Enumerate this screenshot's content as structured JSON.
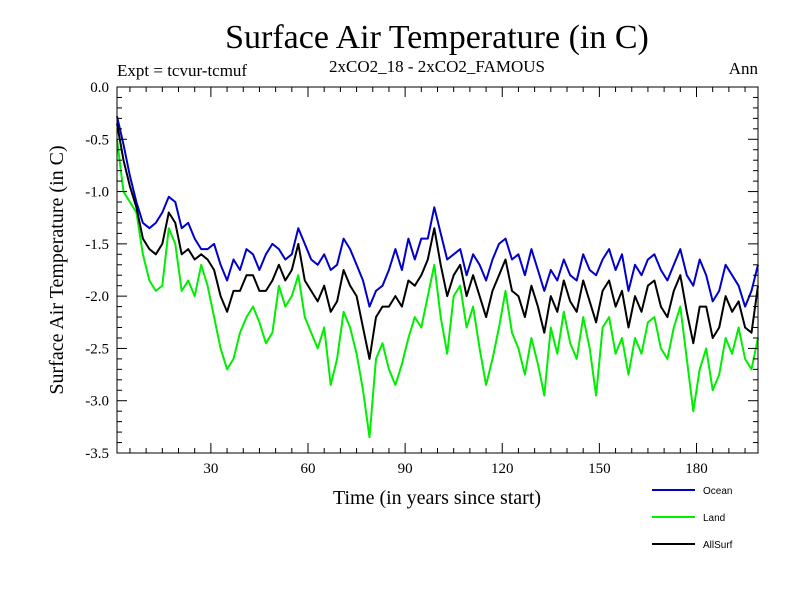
{
  "chart_data": {
    "type": "line",
    "title": "Surface Air Temperature (in C)",
    "subtitle_left": "Expt = tcvur-tcmuf",
    "subtitle_center": "2xCO2_18 - 2xCO2_FAMOUS",
    "subtitle_right": "Ann",
    "xlabel": "Time (in years since start)",
    "ylabel": "Surface Air Temperature (in C)",
    "xlim": [
      1,
      199
    ],
    "ylim": [
      -3.5,
      0.0
    ],
    "xticks": [
      30,
      60,
      90,
      120,
      150,
      180
    ],
    "xtick_labels": [
      "30",
      "60",
      "90",
      "120",
      "150",
      "180"
    ],
    "yticks": [
      0.0,
      -0.5,
      -1.0,
      -1.5,
      -2.0,
      -2.5,
      -3.0,
      -3.5
    ],
    "ytick_labels": [
      "0.0",
      "-0.5",
      "-1.0",
      "-1.5",
      "-2.0",
      "-2.5",
      "-3.0",
      "-3.5"
    ],
    "grid": false,
    "legend_position": "bottom-right",
    "x": [
      1,
      3,
      5,
      7,
      9,
      11,
      13,
      15,
      17,
      19,
      21,
      23,
      25,
      27,
      29,
      31,
      33,
      35,
      37,
      39,
      41,
      43,
      45,
      47,
      49,
      51,
      53,
      55,
      57,
      59,
      61,
      63,
      65,
      67,
      69,
      71,
      73,
      75,
      77,
      79,
      81,
      83,
      85,
      87,
      89,
      91,
      93,
      95,
      97,
      99,
      101,
      103,
      105,
      107,
      109,
      111,
      113,
      115,
      117,
      119,
      121,
      123,
      125,
      127,
      129,
      131,
      133,
      135,
      137,
      139,
      141,
      143,
      145,
      147,
      149,
      151,
      153,
      155,
      157,
      159,
      161,
      163,
      165,
      167,
      169,
      171,
      173,
      175,
      177,
      179,
      181,
      183,
      185,
      187,
      189,
      191,
      193,
      195,
      197,
      199
    ],
    "series": [
      {
        "name": "Ocean",
        "color": "#0000cc",
        "values": [
          -0.28,
          -0.55,
          -0.85,
          -1.1,
          -1.3,
          -1.35,
          -1.3,
          -1.2,
          -1.05,
          -1.1,
          -1.35,
          -1.3,
          -1.45,
          -1.55,
          -1.55,
          -1.5,
          -1.7,
          -1.85,
          -1.65,
          -1.75,
          -1.55,
          -1.6,
          -1.75,
          -1.6,
          -1.5,
          -1.55,
          -1.65,
          -1.6,
          -1.35,
          -1.5,
          -1.65,
          -1.7,
          -1.6,
          -1.75,
          -1.7,
          -1.45,
          -1.55,
          -1.7,
          -1.85,
          -2.1,
          -1.95,
          -1.9,
          -1.75,
          -1.55,
          -1.75,
          -1.45,
          -1.65,
          -1.45,
          -1.45,
          -1.15,
          -1.4,
          -1.65,
          -1.6,
          -1.55,
          -1.8,
          -1.6,
          -1.7,
          -1.85,
          -1.65,
          -1.5,
          -1.45,
          -1.65,
          -1.6,
          -1.8,
          -1.55,
          -1.75,
          -1.95,
          -1.75,
          -1.85,
          -1.65,
          -1.8,
          -1.85,
          -1.6,
          -1.75,
          -1.8,
          -1.65,
          -1.55,
          -1.75,
          -1.6,
          -1.95,
          -1.7,
          -1.8,
          -1.65,
          -1.6,
          -1.75,
          -1.85,
          -1.7,
          -1.55,
          -1.8,
          -1.9,
          -1.65,
          -1.8,
          -2.05,
          -1.95,
          -1.7,
          -1.8,
          -1.9,
          -2.1,
          -1.95,
          -1.7
        ]
      },
      {
        "name": "Land",
        "color": "#00ee00",
        "values": [
          -0.5,
          -1.0,
          -1.1,
          -1.2,
          -1.6,
          -1.85,
          -1.95,
          -1.9,
          -1.35,
          -1.5,
          -1.95,
          -1.85,
          -2.0,
          -1.7,
          -1.9,
          -2.2,
          -2.5,
          -2.7,
          -2.6,
          -2.35,
          -2.2,
          -2.1,
          -2.25,
          -2.45,
          -2.35,
          -1.9,
          -2.1,
          -2.0,
          -1.8,
          -2.2,
          -2.35,
          -2.5,
          -2.3,
          -2.85,
          -2.6,
          -2.15,
          -2.3,
          -2.55,
          -2.9,
          -3.35,
          -2.6,
          -2.45,
          -2.7,
          -2.85,
          -2.65,
          -2.4,
          -2.2,
          -2.3,
          -2.0,
          -1.7,
          -2.2,
          -2.55,
          -2.0,
          -1.9,
          -2.3,
          -2.1,
          -2.5,
          -2.85,
          -2.6,
          -2.3,
          -1.95,
          -2.35,
          -2.5,
          -2.75,
          -2.4,
          -2.65,
          -2.95,
          -2.3,
          -2.55,
          -2.15,
          -2.45,
          -2.6,
          -2.2,
          -2.5,
          -2.95,
          -2.3,
          -2.2,
          -2.55,
          -2.4,
          -2.75,
          -2.4,
          -2.55,
          -2.25,
          -2.2,
          -2.5,
          -2.6,
          -2.3,
          -2.1,
          -2.6,
          -3.1,
          -2.7,
          -2.5,
          -2.9,
          -2.75,
          -2.4,
          -2.55,
          -2.3,
          -2.6,
          -2.7,
          -2.4
        ]
      },
      {
        "name": "AllSurf",
        "color": "#000000",
        "values": [
          -0.35,
          -0.7,
          -0.95,
          -1.15,
          -1.45,
          -1.55,
          -1.6,
          -1.5,
          -1.2,
          -1.3,
          -1.6,
          -1.55,
          -1.65,
          -1.6,
          -1.65,
          -1.75,
          -2.0,
          -2.15,
          -1.95,
          -1.95,
          -1.8,
          -1.8,
          -1.95,
          -1.95,
          -1.85,
          -1.7,
          -1.85,
          -1.75,
          -1.5,
          -1.85,
          -1.95,
          -2.05,
          -1.9,
          -2.15,
          -2.05,
          -1.75,
          -1.9,
          -2.0,
          -2.3,
          -2.6,
          -2.2,
          -2.1,
          -2.1,
          -2.0,
          -2.1,
          -1.85,
          -1.9,
          -1.8,
          -1.65,
          -1.35,
          -1.7,
          -2.0,
          -1.8,
          -1.7,
          -2.0,
          -1.8,
          -2.0,
          -2.2,
          -1.95,
          -1.8,
          -1.65,
          -1.95,
          -2.0,
          -2.2,
          -1.9,
          -2.1,
          -2.35,
          -2.0,
          -2.15,
          -1.85,
          -2.05,
          -2.15,
          -1.85,
          -2.05,
          -2.25,
          -1.95,
          -1.85,
          -2.1,
          -1.95,
          -2.3,
          -2.0,
          -2.15,
          -1.9,
          -1.85,
          -2.1,
          -2.2,
          -1.95,
          -1.8,
          -2.15,
          -2.45,
          -2.1,
          -2.1,
          -2.4,
          -2.3,
          -2.0,
          -2.15,
          -2.05,
          -2.3,
          -2.35,
          -1.9
        ]
      }
    ]
  }
}
